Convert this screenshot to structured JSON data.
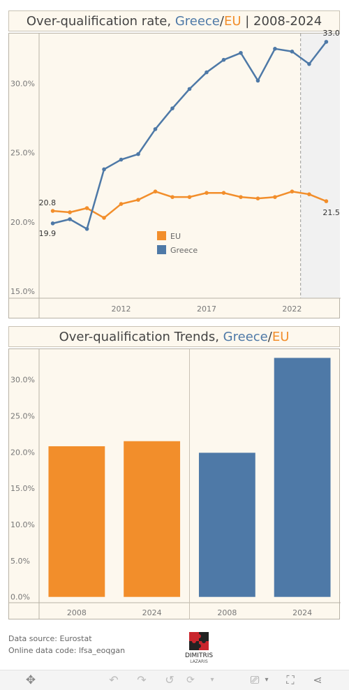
{
  "header1": {
    "prefix": "Over-qualification rate, ",
    "greece": "Greece",
    "slash": "/",
    "eu": "EU",
    "suffix": " | 2008-2024"
  },
  "header2": {
    "prefix": "Over-qualification Trends, ",
    "greece": "Greece",
    "slash": "/",
    "eu": "EU"
  },
  "colors": {
    "eu": "#f28e2b",
    "greece": "#4e79a7"
  },
  "chart_data": [
    {
      "type": "line",
      "x": [
        2008,
        2009,
        2010,
        2011,
        2012,
        2013,
        2014,
        2015,
        2016,
        2017,
        2018,
        2019,
        2020,
        2021,
        2022,
        2023,
        2024
      ],
      "series": [
        {
          "name": "EU",
          "values": [
            20.8,
            20.7,
            21.0,
            20.3,
            21.3,
            21.6,
            22.2,
            21.8,
            21.8,
            22.1,
            22.1,
            21.8,
            21.7,
            21.8,
            22.2,
            22.0,
            21.5
          ]
        },
        {
          "name": "Greece",
          "values": [
            19.9,
            20.2,
            19.5,
            23.8,
            24.5,
            24.9,
            26.7,
            28.2,
            29.6,
            30.8,
            31.7,
            32.2,
            30.2,
            32.5,
            32.3,
            31.4,
            33.0
          ]
        }
      ],
      "data_labels": {
        "eu_start": "20.8",
        "eu_end": "21.5",
        "greece_start": "19.9",
        "greece_end": "33.0"
      },
      "yticks": [
        "15.0%",
        "20.0%",
        "25.0%",
        "30.0%"
      ],
      "ytick_values": [
        15,
        20,
        25,
        30
      ],
      "xticks": [
        "2012",
        "2017",
        "2022"
      ],
      "xtick_values": [
        2012,
        2017,
        2022
      ],
      "ylim": [
        14.5,
        33.6
      ],
      "xlim": [
        2007.2,
        2024.8
      ],
      "legend": {
        "placement": "center",
        "items": [
          "EU",
          "Greece"
        ]
      },
      "highlight_band": [
        2023,
        2024
      ]
    },
    {
      "type": "bar",
      "groups": [
        {
          "name": "EU",
          "categories": [
            "2008",
            "2024"
          ],
          "values": [
            20.8,
            21.5
          ]
        },
        {
          "name": "Greece",
          "categories": [
            "2008",
            "2024"
          ],
          "values": [
            19.9,
            33.0
          ]
        }
      ],
      "yticks": [
        "0.0%",
        "5.0%",
        "10.0%",
        "15.0%",
        "20.0%",
        "25.0%",
        "30.0%"
      ],
      "ytick_values": [
        0,
        5,
        10,
        15,
        20,
        25,
        30
      ],
      "ylim": [
        -0.8,
        34.2
      ]
    }
  ],
  "footer": {
    "source": "Data source: Eurostat",
    "code": "Online data code: lfsa_eoqgan"
  },
  "logo": {
    "line1": "DIMITRIS",
    "line2": "LAZARIS"
  }
}
